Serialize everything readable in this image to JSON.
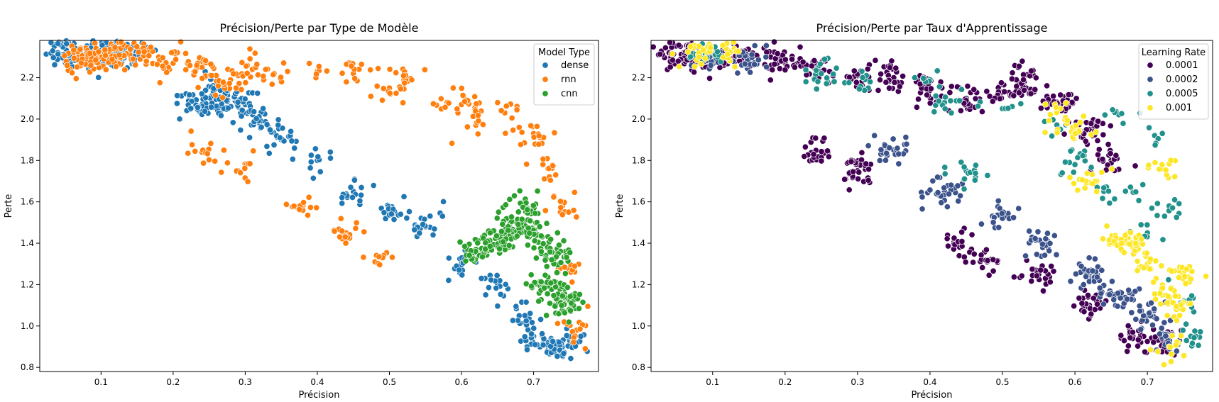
{
  "chart_data": [
    {
      "type": "scatter",
      "title": "Précision/Perte par Type de Modèle",
      "xlabel": "Précision",
      "ylabel": "Perte",
      "xlim": [
        0.015,
        0.79
      ],
      "ylim": [
        0.78,
        2.38
      ],
      "xticks": [
        0.1,
        0.2,
        0.3,
        0.4,
        0.5,
        0.6,
        0.7
      ],
      "yticks": [
        0.8,
        1.0,
        1.2,
        1.4,
        1.6,
        1.8,
        2.0,
        2.2
      ],
      "grid": false,
      "legend": {
        "title": "Model Type",
        "placement": "top-right"
      },
      "series": [
        {
          "name": "dense",
          "color": "#1f77b4",
          "n": 520,
          "seed": 11,
          "points": [
            [
              0.04,
              2.32
            ],
            [
              0.06,
              2.32
            ],
            [
              0.08,
              2.32
            ],
            [
              0.09,
              2.32
            ],
            [
              0.1,
              2.31
            ],
            [
              0.11,
              2.32
            ],
            [
              0.12,
              2.31
            ],
            [
              0.13,
              2.32
            ],
            [
              0.15,
              2.31
            ],
            [
              0.23,
              2.09
            ],
            [
              0.24,
              2.07
            ],
            [
              0.26,
              2.15
            ],
            [
              0.27,
              2.09
            ],
            [
              0.28,
              2.06
            ],
            [
              0.3,
              2.07
            ],
            [
              0.32,
              1.98
            ],
            [
              0.35,
              1.9
            ],
            [
              0.4,
              1.8
            ],
            [
              0.45,
              1.65
            ],
            [
              0.5,
              1.55
            ],
            [
              0.55,
              1.48
            ],
            [
              0.6,
              1.3
            ],
            [
              0.65,
              1.2
            ],
            [
              0.68,
              1.05
            ],
            [
              0.7,
              0.95
            ],
            [
              0.72,
              0.92
            ],
            [
              0.74,
              0.9
            ],
            [
              0.75,
              0.93
            ]
          ]
        },
        {
          "name": "rnn",
          "color": "#ff7f0e",
          "n": 430,
          "seed": 23,
          "points": [
            [
              0.07,
              2.31
            ],
            [
              0.08,
              2.3
            ],
            [
              0.09,
              2.31
            ],
            [
              0.1,
              2.3
            ],
            [
              0.11,
              2.3
            ],
            [
              0.12,
              2.3
            ],
            [
              0.13,
              2.3
            ],
            [
              0.14,
              2.31
            ],
            [
              0.16,
              2.31
            ],
            [
              0.18,
              2.3
            ],
            [
              0.2,
              2.27
            ],
            [
              0.22,
              2.27
            ],
            [
              0.24,
              2.25
            ],
            [
              0.25,
              2.21
            ],
            [
              0.27,
              2.18
            ],
            [
              0.29,
              2.21
            ],
            [
              0.31,
              2.24
            ],
            [
              0.34,
              2.22
            ],
            [
              0.4,
              2.23
            ],
            [
              0.45,
              2.22
            ],
            [
              0.5,
              2.15
            ],
            [
              0.52,
              2.18
            ],
            [
              0.58,
              2.08
            ],
            [
              0.6,
              2.07
            ],
            [
              0.62,
              1.97
            ],
            [
              0.66,
              2.03
            ],
            [
              0.68,
              1.96
            ],
            [
              0.7,
              1.93
            ],
            [
              0.72,
              1.76
            ],
            [
              0.74,
              1.58
            ],
            [
              0.24,
              1.84
            ],
            [
              0.29,
              1.75
            ],
            [
              0.38,
              1.58
            ],
            [
              0.44,
              1.45
            ],
            [
              0.48,
              1.31
            ],
            [
              0.75,
              1.27
            ],
            [
              0.76,
              0.98
            ]
          ]
        },
        {
          "name": "cnn",
          "color": "#2ca02c",
          "n": 300,
          "seed": 37,
          "points": [
            [
              0.62,
              1.37
            ],
            [
              0.64,
              1.4
            ],
            [
              0.66,
              1.42
            ],
            [
              0.67,
              1.47
            ],
            [
              0.69,
              1.57
            ],
            [
              0.7,
              1.44
            ],
            [
              0.72,
              1.2
            ],
            [
              0.74,
              1.1
            ],
            [
              0.75,
              1.12
            ],
            [
              0.73,
              1.35
            ]
          ]
        }
      ]
    },
    {
      "type": "scatter",
      "title": "Précision/Perte par Taux d'Apprentissage",
      "xlabel": "Précision",
      "ylabel": "Perte",
      "xlim": [
        0.015,
        0.79
      ],
      "ylim": [
        0.78,
        2.38
      ],
      "xticks": [
        0.1,
        0.2,
        0.3,
        0.4,
        0.5,
        0.6,
        0.7
      ],
      "yticks": [
        0.8,
        1.0,
        1.2,
        1.4,
        1.6,
        1.8,
        2.0,
        2.2
      ],
      "grid": false,
      "legend": {
        "title": "Learning Rate",
        "placement": "top-right"
      },
      "series": [
        {
          "name": "0.0001",
          "color": "#440154",
          "n": 620,
          "seed": 101,
          "points": [
            [
              0.04,
              2.32
            ],
            [
              0.06,
              2.32
            ],
            [
              0.08,
              2.32
            ],
            [
              0.1,
              2.31
            ],
            [
              0.12,
              2.31
            ],
            [
              0.14,
              2.31
            ],
            [
              0.18,
              2.3
            ],
            [
              0.2,
              2.27
            ],
            [
              0.24,
              2.25
            ],
            [
              0.3,
              2.21
            ],
            [
              0.35,
              2.2
            ],
            [
              0.4,
              2.15
            ],
            [
              0.45,
              2.1
            ],
            [
              0.5,
              2.13
            ],
            [
              0.53,
              2.18
            ],
            [
              0.58,
              2.07
            ],
            [
              0.62,
              1.95
            ],
            [
              0.65,
              1.8
            ],
            [
              0.24,
              1.84
            ],
            [
              0.3,
              1.75
            ],
            [
              0.44,
              1.4
            ],
            [
              0.48,
              1.31
            ],
            [
              0.55,
              1.25
            ],
            [
              0.62,
              1.1
            ],
            [
              0.68,
              0.95
            ],
            [
              0.72,
              0.92
            ]
          ]
        },
        {
          "name": "0.0002",
          "color": "#3b528b",
          "n": 260,
          "seed": 131,
          "points": [
            [
              0.1,
              2.3
            ],
            [
              0.15,
              2.3
            ],
            [
              0.35,
              1.85
            ],
            [
              0.42,
              1.65
            ],
            [
              0.5,
              1.52
            ],
            [
              0.56,
              1.4
            ],
            [
              0.62,
              1.25
            ],
            [
              0.66,
              1.15
            ],
            [
              0.7,
              1.05
            ],
            [
              0.73,
              0.95
            ]
          ]
        },
        {
          "name": "0.0005",
          "color": "#21918c",
          "n": 170,
          "seed": 151,
          "points": [
            [
              0.09,
              2.31
            ],
            [
              0.25,
              2.22
            ],
            [
              0.31,
              2.19
            ],
            [
              0.4,
              2.19
            ],
            [
              0.42,
              2.08
            ],
            [
              0.45,
              1.75
            ],
            [
              0.5,
              2.05
            ],
            [
              0.58,
              1.95
            ],
            [
              0.6,
              1.78
            ],
            [
              0.64,
              1.65
            ],
            [
              0.66,
              2.02
            ],
            [
              0.68,
              1.65
            ],
            [
              0.7,
              1.45
            ],
            [
              0.71,
              1.92
            ],
            [
              0.73,
              1.58
            ],
            [
              0.75,
              1.12
            ],
            [
              0.76,
              0.95
            ]
          ]
        },
        {
          "name": "0.001",
          "color": "#fde725",
          "n": 220,
          "seed": 171,
          "points": [
            [
              0.08,
              2.31
            ],
            [
              0.12,
              2.31
            ],
            [
              0.58,
              2.05
            ],
            [
              0.6,
              1.95
            ],
            [
              0.63,
              1.7
            ],
            [
              0.66,
              1.42
            ],
            [
              0.68,
              1.38
            ],
            [
              0.7,
              1.3
            ],
            [
              0.72,
              1.15
            ],
            [
              0.74,
              1.08
            ],
            [
              0.75,
              1.27
            ],
            [
              0.73,
              0.9
            ],
            [
              0.72,
              1.76
            ]
          ]
        }
      ]
    }
  ]
}
